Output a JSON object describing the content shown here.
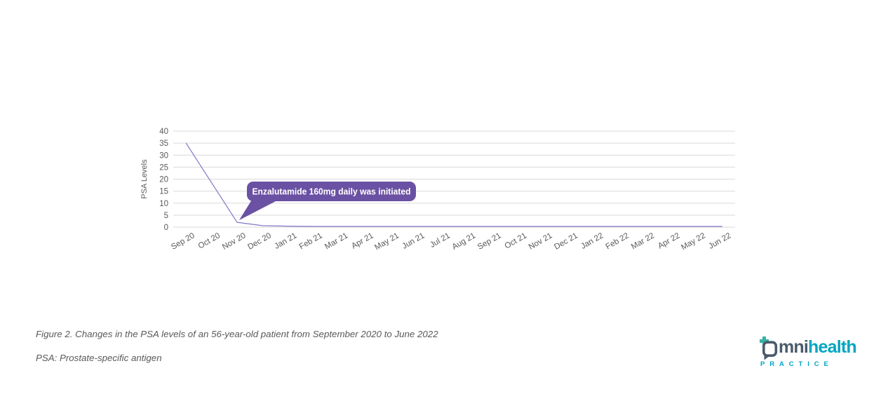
{
  "chart_data": {
    "type": "line",
    "title": "",
    "xlabel": "",
    "ylabel": "PSA Levels",
    "ylim": [
      0,
      40
    ],
    "ytick_step": 5,
    "grid": true,
    "legend": "none",
    "categories": [
      "Sep 20",
      "Oct 20",
      "Nov 20",
      "Dec 20",
      "Jan 21",
      "Feb 21",
      "Mar 21",
      "Apr 21",
      "May 21",
      "Jun 21",
      "Jul 21",
      "Aug 21",
      "Sep 21",
      "Oct 21",
      "Nov 21",
      "Dec 21",
      "Jan 22",
      "Feb 22",
      "Mar 22",
      "Apr 22",
      "May 22",
      "Jun 22"
    ],
    "series": [
      {
        "name": "PSA level",
        "color": "#8278c4",
        "values": [
          35,
          18.5,
          2,
          0.6,
          0.4,
          0.3,
          0.3,
          0.3,
          0.3,
          0.3,
          0.3,
          0.3,
          0.3,
          0.3,
          0.3,
          0.3,
          0.3,
          0.3,
          0.3,
          0.3,
          0.3,
          0.3
        ]
      }
    ],
    "annotation": {
      "text": "Enzalutamide 160mg daily was initiated",
      "target_category": "Nov 20",
      "target_value": 2,
      "bg_color": "#6a51a3",
      "text_color": "#ffffff"
    },
    "axis_text_color": "#595959",
    "gridline_color": "#d9d9d9"
  },
  "captions": {
    "figure": "Figure 2. Changes in the PSA levels of an 56-year-old patient from September 2020 to June 2022",
    "footnote": "PSA: Prostate-specific antigen"
  },
  "logo": {
    "part1": "mni",
    "part2": "health",
    "subtitle": "PRACTICE",
    "slate_color": "#4a5b6b",
    "cyan_color": "#00a6c1",
    "teal_color": "#35b2a5"
  }
}
